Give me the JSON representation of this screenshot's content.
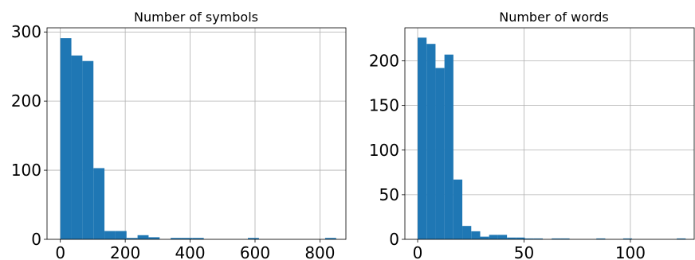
{
  "figure": {
    "background": "#ffffff"
  },
  "chart_data": [
    {
      "type": "histogram",
      "title": "Number of symbols",
      "xlabel": "",
      "ylabel": "",
      "xlim": [
        -41,
        880
      ],
      "ylim": [
        0,
        306
      ],
      "xticks": [
        0,
        200,
        400,
        600,
        800
      ],
      "xtick_labels": [
        "0",
        "200",
        "400",
        "600",
        "800"
      ],
      "yticks": [
        0,
        100,
        200,
        300
      ],
      "ytick_labels": [
        "0",
        "100",
        "200",
        "300"
      ],
      "grid": true,
      "color": "#1f77b4",
      "bins": [
        {
          "x0": 0,
          "x1": 34,
          "count": 291
        },
        {
          "x0": 34,
          "x1": 68,
          "count": 266
        },
        {
          "x0": 68,
          "x1": 102,
          "count": 258
        },
        {
          "x0": 102,
          "x1": 136,
          "count": 103
        },
        {
          "x0": 136,
          "x1": 170,
          "count": 12
        },
        {
          "x0": 170,
          "x1": 204,
          "count": 12
        },
        {
          "x0": 204,
          "x1": 238,
          "count": 2
        },
        {
          "x0": 238,
          "x1": 272,
          "count": 6
        },
        {
          "x0": 272,
          "x1": 306,
          "count": 3
        },
        {
          "x0": 306,
          "x1": 340,
          "count": 0
        },
        {
          "x0": 340,
          "x1": 374,
          "count": 2
        },
        {
          "x0": 374,
          "x1": 408,
          "count": 2
        },
        {
          "x0": 408,
          "x1": 442,
          "count": 2
        },
        {
          "x0": 442,
          "x1": 476,
          "count": 0
        },
        {
          "x0": 476,
          "x1": 510,
          "count": 0
        },
        {
          "x0": 510,
          "x1": 544,
          "count": 0
        },
        {
          "x0": 544,
          "x1": 578,
          "count": 0
        },
        {
          "x0": 578,
          "x1": 612,
          "count": 2
        },
        {
          "x0": 612,
          "x1": 646,
          "count": 0
        },
        {
          "x0": 646,
          "x1": 680,
          "count": 0
        },
        {
          "x0": 680,
          "x1": 714,
          "count": 0
        },
        {
          "x0": 714,
          "x1": 748,
          "count": 0
        },
        {
          "x0": 748,
          "x1": 782,
          "count": 0
        },
        {
          "x0": 782,
          "x1": 816,
          "count": 0
        },
        {
          "x0": 816,
          "x1": 850,
          "count": 2
        }
      ]
    },
    {
      "type": "histogram",
      "title": "Number of words",
      "xlabel": "",
      "ylabel": "",
      "xlim": [
        -6,
        130
      ],
      "ylim": [
        0,
        237
      ],
      "xticks": [
        0,
        50,
        100
      ],
      "xtick_labels": [
        "0",
        "50",
        "100"
      ],
      "yticks": [
        0,
        50,
        100,
        150,
        200
      ],
      "ytick_labels": [
        "0",
        "50",
        "100",
        "150",
        "200"
      ],
      "grid": true,
      "color": "#1f77b4",
      "bins": [
        {
          "x0": 0,
          "x1": 4.2,
          "count": 226
        },
        {
          "x0": 4.2,
          "x1": 8.4,
          "count": 219
        },
        {
          "x0": 8.4,
          "x1": 12.6,
          "count": 192
        },
        {
          "x0": 12.6,
          "x1": 16.8,
          "count": 207
        },
        {
          "x0": 16.8,
          "x1": 21.0,
          "count": 67
        },
        {
          "x0": 21.0,
          "x1": 25.2,
          "count": 15
        },
        {
          "x0": 25.2,
          "x1": 29.4,
          "count": 9
        },
        {
          "x0": 29.4,
          "x1": 33.6,
          "count": 3
        },
        {
          "x0": 33.6,
          "x1": 37.8,
          "count": 5
        },
        {
          "x0": 37.8,
          "x1": 42.0,
          "count": 5
        },
        {
          "x0": 42.0,
          "x1": 46.2,
          "count": 2
        },
        {
          "x0": 46.2,
          "x1": 50.4,
          "count": 2
        },
        {
          "x0": 50.4,
          "x1": 54.6,
          "count": 1
        },
        {
          "x0": 54.6,
          "x1": 58.8,
          "count": 1
        },
        {
          "x0": 58.8,
          "x1": 63.0,
          "count": 0
        },
        {
          "x0": 63.0,
          "x1": 67.2,
          "count": 1
        },
        {
          "x0": 67.2,
          "x1": 71.4,
          "count": 1
        },
        {
          "x0": 71.4,
          "x1": 75.6,
          "count": 0
        },
        {
          "x0": 75.6,
          "x1": 79.8,
          "count": 0
        },
        {
          "x0": 79.8,
          "x1": 84.0,
          "count": 0
        },
        {
          "x0": 84.0,
          "x1": 88.2,
          "count": 1
        },
        {
          "x0": 88.2,
          "x1": 92.4,
          "count": 0
        },
        {
          "x0": 92.4,
          "x1": 96.6,
          "count": 0
        },
        {
          "x0": 96.6,
          "x1": 100.8,
          "count": 1
        },
        {
          "x0": 100.8,
          "x1": 105.0,
          "count": 0
        },
        {
          "x0": 105.0,
          "x1": 109.2,
          "count": 0
        },
        {
          "x0": 109.2,
          "x1": 113.4,
          "count": 0
        },
        {
          "x0": 113.4,
          "x1": 117.6,
          "count": 0
        },
        {
          "x0": 117.6,
          "x1": 121.8,
          "count": 0
        },
        {
          "x0": 121.8,
          "x1": 126.0,
          "count": 1
        }
      ]
    }
  ]
}
